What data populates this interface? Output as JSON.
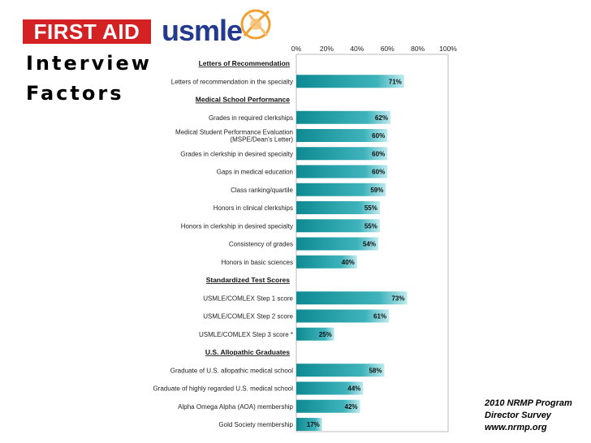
{
  "logos": {
    "first_aid": "FIRST AID",
    "usmle": "usmle"
  },
  "title_lines": [
    "Interview",
    "Factors"
  ],
  "source_lines": [
    "2010 NRMP Program",
    "Director Survey",
    "www.nrmp.org"
  ],
  "colors": {
    "bar_dark": "#0e8a92",
    "bar_light": "#bdebef",
    "first_aid_red": "#d42124",
    "usmle_blue": "#233a8f",
    "usmle_orange": "#f0a030"
  },
  "chart_data": {
    "type": "bar",
    "orientation": "horizontal",
    "x_ticks": [
      "0%",
      "20%",
      "40%",
      "60%",
      "80%",
      "100%"
    ],
    "xlim": [
      0,
      100
    ],
    "grid": false,
    "rows": [
      {
        "kind": "header",
        "label": "Letters of Recommendation"
      },
      {
        "kind": "bar",
        "label": "Letters of recommendation in the specialty",
        "value": 71,
        "value_label": "71%"
      },
      {
        "kind": "header",
        "label": "Medical School Performance"
      },
      {
        "kind": "bar",
        "label": "Grades in required clerkships",
        "value": 62,
        "value_label": "62%"
      },
      {
        "kind": "bar",
        "label": "Medical Student Performance Evaluation",
        "label2": "(MSPE/Dean's Letter)",
        "value": 60,
        "value_label": "60%"
      },
      {
        "kind": "bar",
        "label": "Grades in clerkship in desired specialty",
        "value": 60,
        "value_label": "60%"
      },
      {
        "kind": "bar",
        "label": "Gaps in medical education",
        "value": 60,
        "value_label": "60%"
      },
      {
        "kind": "bar",
        "label": "Class ranking/quartile",
        "value": 59,
        "value_label": "59%"
      },
      {
        "kind": "bar",
        "label": "Honors in clinical clerkships",
        "value": 55,
        "value_label": "55%"
      },
      {
        "kind": "bar",
        "label": "Honors in clerkship in desired specialty",
        "value": 55,
        "value_label": "55%"
      },
      {
        "kind": "bar",
        "label": "Consistency of grades",
        "value": 54,
        "value_label": "54%"
      },
      {
        "kind": "bar",
        "label": "Honors in basic sciences",
        "value": 40,
        "value_label": "40%"
      },
      {
        "kind": "header",
        "label": "Standardized Test Scores"
      },
      {
        "kind": "bar",
        "label": "USMLE/COMLEX Step 1 score",
        "value": 73,
        "value_label": "73%"
      },
      {
        "kind": "bar",
        "label": "USMLE/COMLEX Step 2 score",
        "value": 61,
        "value_label": "61%"
      },
      {
        "kind": "bar",
        "label": "USMLE/COMLEX Step 3 score *",
        "value": 25,
        "value_label": "25%"
      },
      {
        "kind": "header",
        "label": "U.S. Allopathic Graduates"
      },
      {
        "kind": "bar",
        "label": "Graduate of U.S. allopathic medical school",
        "value": 58,
        "value_label": "58%"
      },
      {
        "kind": "bar",
        "label": "Graduate of highly regarded U.S. medical school",
        "value": 44,
        "value_label": "44%"
      },
      {
        "kind": "bar",
        "label": "Alpha Omega Alpha (AOA) membership",
        "value": 42,
        "value_label": "42%"
      },
      {
        "kind": "bar",
        "label": "Gold Society membership",
        "value": 17,
        "value_label": "17%"
      }
    ]
  }
}
